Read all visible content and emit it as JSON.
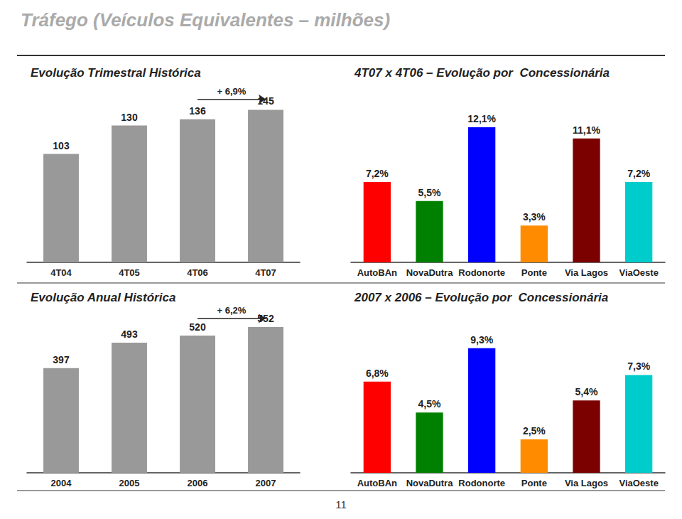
{
  "title": "Tráfego (Veículos Equivalentes – milhões)",
  "annotations": [
    "11"
  ],
  "chart_data": [
    {
      "type": "bar",
      "title": "Evolução Trimestral Histórica",
      "categories": [
        "4T04",
        "4T05",
        "4T06",
        "4T07"
      ],
      "values": [
        103,
        130,
        136,
        145
      ],
      "color": "#999999",
      "ylim": [
        0,
        175
      ],
      "grid": false,
      "data_labels": true,
      "tick_labels": "x",
      "annotations": [
        {
          "text": "+ 6,9%",
          "from": "4T06",
          "to": "4T07"
        }
      ]
    },
    {
      "type": "bar",
      "title": "4T07 x 4T06 – Evolução por  Concessionária",
      "categories": [
        "AutoBAn",
        "NovaDutra",
        "Rodonorte",
        "Ponte",
        "Via Lagos",
        "ViaOeste"
      ],
      "values": [
        7.2,
        5.5,
        12.1,
        3.3,
        11.1,
        7.2
      ],
      "value_labels": [
        "7,2%",
        "5,5%",
        "12,1%",
        "3,3%",
        "11,1%",
        "7,2%"
      ],
      "colors": [
        "#ff0000",
        "#008000",
        "#0000ff",
        "#ff8c00",
        "#7b0000",
        "#00cccc"
      ],
      "ylim": [
        0,
        16.5
      ],
      "grid": false,
      "data_labels": true,
      "tick_labels": "x"
    },
    {
      "type": "bar",
      "title": "Evolução Anual Histórica",
      "categories": [
        "2004",
        "2005",
        "2006",
        "2007"
      ],
      "values": [
        397,
        493,
        520,
        552
      ],
      "color": "#999999",
      "ylim": [
        0,
        660
      ],
      "grid": false,
      "data_labels": true,
      "tick_labels": "x",
      "annotations": [
        {
          "text": "+ 6,2%",
          "from": "2006",
          "to": "2007"
        }
      ]
    },
    {
      "type": "bar",
      "title": "2007 x 2006 – Evolução por  Concessionária",
      "categories": [
        "AutoBAn",
        "NovaDutra",
        "Rodonorte",
        "Ponte",
        "Via Lagos",
        "ViaOeste"
      ],
      "values": [
        6.8,
        4.5,
        9.3,
        2.5,
        5.4,
        7.3
      ],
      "value_labels": [
        "6,8%",
        "4,5%",
        "9,3%",
        "2,5%",
        "5,4%",
        "7,3%"
      ],
      "colors": [
        "#ff0000",
        "#008000",
        "#0000ff",
        "#ff8c00",
        "#7b0000",
        "#00cccc"
      ],
      "ylim": [
        0,
        13.0
      ],
      "grid": false,
      "data_labels": true,
      "tick_labels": "x"
    }
  ]
}
